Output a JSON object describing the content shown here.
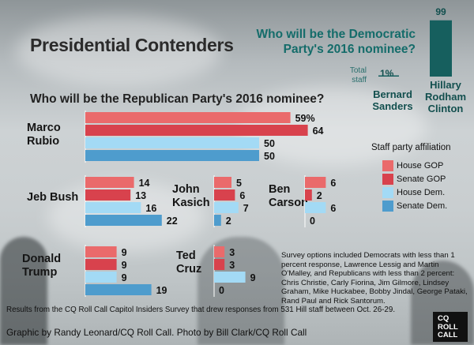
{
  "title": "Presidential Contenders",
  "democratic": {
    "question": "Who will be the  Democratic Party's 2016 nominee?",
    "total_staff_label": "Total staff",
    "color": "#165f5e",
    "candidates": [
      {
        "name": "Bernard Sanders",
        "value": 1,
        "value_label": "1%"
      },
      {
        "name": "Hillary Rodham Clinton",
        "value": 99,
        "value_label": "99"
      }
    ]
  },
  "republican_question": "Who will be the Republican Party's 2016 nominee?",
  "legend": {
    "title": "Staff party affiliation",
    "items": [
      "House GOP",
      "Senate GOP",
      "House Dem.",
      "Senate Dem."
    ]
  },
  "series_colors": [
    "#ea6a6b",
    "#d8424d",
    "#a3daf5",
    "#4e9ccd"
  ],
  "note": "Survey options included Democrats with less than 1 percent response, Lawrence Lessig and Martin O'Malley, and Republicans with less than 2 percent: Chris Christie, Carly Fiorina, Jim Gilmore, Lindsey Graham, Mike Huckabee, Bobby Jindal, George Pataki, Rand Paul and Rick Santorum.",
  "source": "Results from the CQ Roll Call Capitol Insiders Survey that drew responses from 531 Hill staff between Oct. 26-29.",
  "credit": "Graphic by Randy Leonard/CQ Roll Call. Photo by Bill Clark/CQ Roll Call",
  "logo": {
    "line1": "CQ",
    "line2": "ROLL",
    "line3": "CALL"
  },
  "chart_data": {
    "type": "bar",
    "series": [
      {
        "name": "House GOP",
        "color": "#ea6a6b"
      },
      {
        "name": "Senate GOP",
        "color": "#d8424d"
      },
      {
        "name": "House Dem.",
        "color": "#a3daf5"
      },
      {
        "name": "Senate Dem.",
        "color": "#4e9ccd"
      }
    ],
    "candidates": [
      {
        "name": "Marco Rubio",
        "values": [
          59,
          64,
          50,
          50
        ],
        "labels": [
          "59%",
          "64",
          "50",
          "50"
        ]
      },
      {
        "name": "Jeb Bush",
        "values": [
          14,
          13,
          16,
          22
        ],
        "labels": [
          "14",
          "13",
          "16",
          "22"
        ]
      },
      {
        "name": "John Kasich",
        "values": [
          5,
          6,
          7,
          2
        ],
        "labels": [
          "5",
          "6",
          "7",
          "2"
        ]
      },
      {
        "name": "Ben Carson",
        "values": [
          6,
          2,
          6,
          0
        ],
        "labels": [
          "6",
          "2",
          "6",
          "0"
        ]
      },
      {
        "name": "Donald Trump",
        "values": [
          9,
          9,
          9,
          19
        ],
        "labels": [
          "9",
          "9",
          "9",
          "19"
        ]
      },
      {
        "name": "Ted Cruz",
        "values": [
          3,
          3,
          9,
          0
        ],
        "labels": [
          "3",
          "3",
          "9",
          "0"
        ]
      }
    ],
    "unit": "percent"
  }
}
